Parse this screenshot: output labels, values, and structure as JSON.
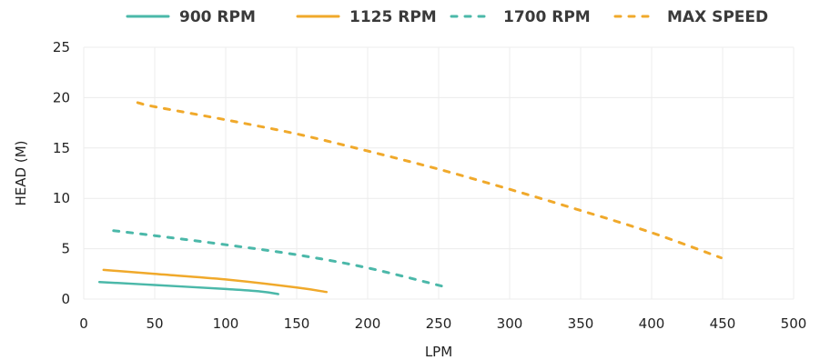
{
  "chart_data": {
    "type": "line",
    "xlabel": "LPM",
    "ylabel": "HEAD (M)",
    "xlim": [
      0,
      500
    ],
    "ylim": [
      0,
      25
    ],
    "x_ticks": [
      0,
      50,
      100,
      150,
      200,
      250,
      300,
      350,
      400,
      450,
      500
    ],
    "y_ticks": [
      0,
      5,
      10,
      15,
      20,
      25
    ],
    "grid": true,
    "legend_position": "top",
    "series": [
      {
        "name": "900 RPM",
        "color": "#4bb8a9",
        "dashed": false,
        "x": [
          11,
          50,
          100,
          125,
          137
        ],
        "y": [
          1.7,
          1.4,
          1.0,
          0.75,
          0.5
        ]
      },
      {
        "name": "1125 RPM",
        "color": "#f0a92b",
        "dashed": false,
        "x": [
          14,
          50,
          100,
          150,
          171
        ],
        "y": [
          2.9,
          2.5,
          1.95,
          1.15,
          0.7
        ]
      },
      {
        "name": "1700 RPM",
        "color": "#4bb8a9",
        "dashed": true,
        "x": [
          21,
          50,
          100,
          150,
          200,
          252
        ],
        "y": [
          6.8,
          6.3,
          5.4,
          4.4,
          3.1,
          1.3
        ]
      },
      {
        "name": "MAX SPEED",
        "color": "#f0a92b",
        "dashed": true,
        "x": [
          38,
          50,
          100,
          150,
          200,
          250,
          300,
          350,
          400,
          449
        ],
        "y": [
          19.5,
          19.1,
          17.8,
          16.4,
          14.7,
          12.9,
          10.9,
          8.8,
          6.6,
          4.1
        ]
      }
    ]
  }
}
